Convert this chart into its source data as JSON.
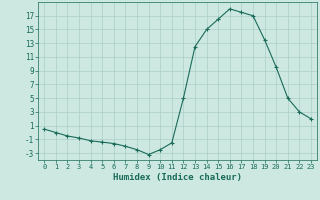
{
  "x": [
    0,
    1,
    2,
    3,
    4,
    5,
    6,
    7,
    8,
    9,
    10,
    11,
    12,
    13,
    14,
    15,
    16,
    17,
    18,
    19,
    20,
    21,
    22,
    23
  ],
  "y": [
    0.5,
    0.0,
    -0.5,
    -0.8,
    -1.2,
    -1.4,
    -1.6,
    -2.0,
    -2.5,
    -3.2,
    -2.5,
    -1.5,
    5.0,
    12.5,
    15.0,
    16.5,
    18.0,
    17.5,
    17.0,
    13.5,
    9.5,
    5.0,
    3.0,
    2.0
  ],
  "title": "",
  "xlabel": "Humidex (Indice chaleur)",
  "ylabel": "",
  "ylim": [
    -4,
    19
  ],
  "xlim": [
    -0.5,
    23.5
  ],
  "yticks": [
    -3,
    -1,
    1,
    3,
    5,
    7,
    9,
    11,
    13,
    15,
    17
  ],
  "xticks": [
    0,
    1,
    2,
    3,
    4,
    5,
    6,
    7,
    8,
    9,
    10,
    11,
    12,
    13,
    14,
    15,
    16,
    17,
    18,
    19,
    20,
    21,
    22,
    23
  ],
  "line_color": "#1a6b5a",
  "marker_color": "#1a6b5a",
  "bg_color": "#cce8e0",
  "grid_color": "#aacfc8",
  "label_color": "#1a6b5a",
  "tick_color": "#1a6b5a"
}
